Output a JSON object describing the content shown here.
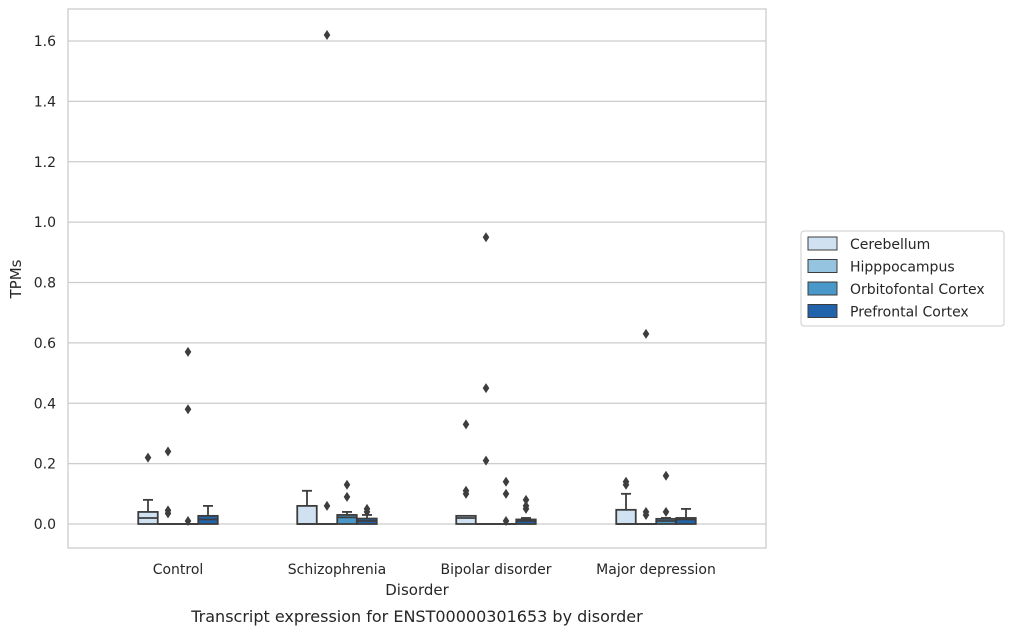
{
  "chart_data": {
    "type": "box",
    "caption": "Transcript expression for ENST00000301653 by disorder",
    "xlabel": "Disorder",
    "ylabel": "TPMs",
    "ylim": [
      -0.08,
      1.7
    ],
    "yticks": [
      "0.0",
      "0.2",
      "0.4",
      "0.6",
      "0.8",
      "1.0",
      "1.2",
      "1.4",
      "1.6"
    ],
    "grid": true,
    "legend_position": "right",
    "categories": [
      "Control",
      "Schizophrenia",
      "Bipolar disorder",
      "Major depression"
    ],
    "series": [
      {
        "name": "Cerebellum",
        "color": "#d0e1f2",
        "boxes": [
          {
            "q1": 0.0,
            "median": 0.02,
            "q3": 0.04,
            "whislo": 0.0,
            "whishi": 0.08,
            "fliers": [
              0.22
            ]
          },
          {
            "q1": 0.0,
            "median": 0.0,
            "q3": 0.06,
            "whislo": 0.0,
            "whishi": 0.11,
            "fliers": []
          },
          {
            "q1": 0.0,
            "median": 0.02,
            "q3": 0.027,
            "whislo": 0.0,
            "whishi": 0.027,
            "fliers": [
              0.1,
              0.11,
              0.33
            ]
          },
          {
            "q1": 0.0,
            "median": 0.0,
            "q3": 0.047,
            "whislo": 0.0,
            "whishi": 0.1,
            "fliers": [
              0.13,
              0.14
            ]
          }
        ]
      },
      {
        "name": "Hipppocampus",
        "color": "#94c4df",
        "boxes": [
          {
            "q1": 0.0,
            "median": 0.0,
            "q3": 0.0,
            "whislo": 0.0,
            "whishi": 0.0,
            "fliers": [
              0.035,
              0.045,
              0.24
            ]
          },
          {
            "q1": 0.0,
            "median": 0.0,
            "q3": 0.0,
            "whislo": 0.0,
            "whishi": 0.0,
            "fliers": [
              0.06,
              1.62
            ]
          },
          {
            "q1": 0.0,
            "median": 0.0,
            "q3": 0.0,
            "whislo": 0.0,
            "whishi": 0.0,
            "fliers": [
              0.21,
              0.45,
              0.95
            ]
          },
          {
            "q1": 0.0,
            "median": 0.0,
            "q3": 0.0,
            "whislo": 0.0,
            "whishi": 0.0,
            "fliers": [
              0.03,
              0.04,
              0.63
            ]
          }
        ]
      },
      {
        "name": "Orbitofontal Cortex",
        "color": "#4a98c9",
        "boxes": [
          {
            "q1": 0.0,
            "median": 0.0,
            "q3": 0.0,
            "whislo": 0.0,
            "whishi": 0.0,
            "fliers": [
              0.01,
              0.38,
              0.57
            ]
          },
          {
            "q1": 0.0,
            "median": 0.022,
            "q3": 0.03,
            "whislo": 0.0,
            "whishi": 0.04,
            "fliers": [
              0.09,
              0.13
            ]
          },
          {
            "q1": 0.0,
            "median": 0.0,
            "q3": 0.0,
            "whislo": 0.0,
            "whishi": 0.0,
            "fliers": [
              0.01,
              0.1,
              0.14
            ]
          },
          {
            "q1": 0.0,
            "median": 0.01,
            "q3": 0.017,
            "whislo": 0.0,
            "whishi": 0.02,
            "fliers": [
              0.04,
              0.16
            ]
          }
        ]
      },
      {
        "name": "Prefrontal Cortex",
        "color": "#2164ab",
        "boxes": [
          {
            "q1": 0.0,
            "median": 0.015,
            "q3": 0.027,
            "whislo": 0.0,
            "whishi": 0.06,
            "fliers": []
          },
          {
            "q1": 0.0,
            "median": 0.01,
            "q3": 0.018,
            "whislo": 0.0,
            "whishi": 0.03,
            "fliers": [
              0.04,
              0.05
            ]
          },
          {
            "q1": 0.0,
            "median": 0.01,
            "q3": 0.015,
            "whislo": 0.0,
            "whishi": 0.02,
            "fliers": [
              0.05,
              0.06,
              0.08
            ]
          },
          {
            "q1": 0.0,
            "median": 0.015,
            "q3": 0.02,
            "whislo": 0.0,
            "whishi": 0.05,
            "fliers": []
          }
        ]
      }
    ]
  }
}
